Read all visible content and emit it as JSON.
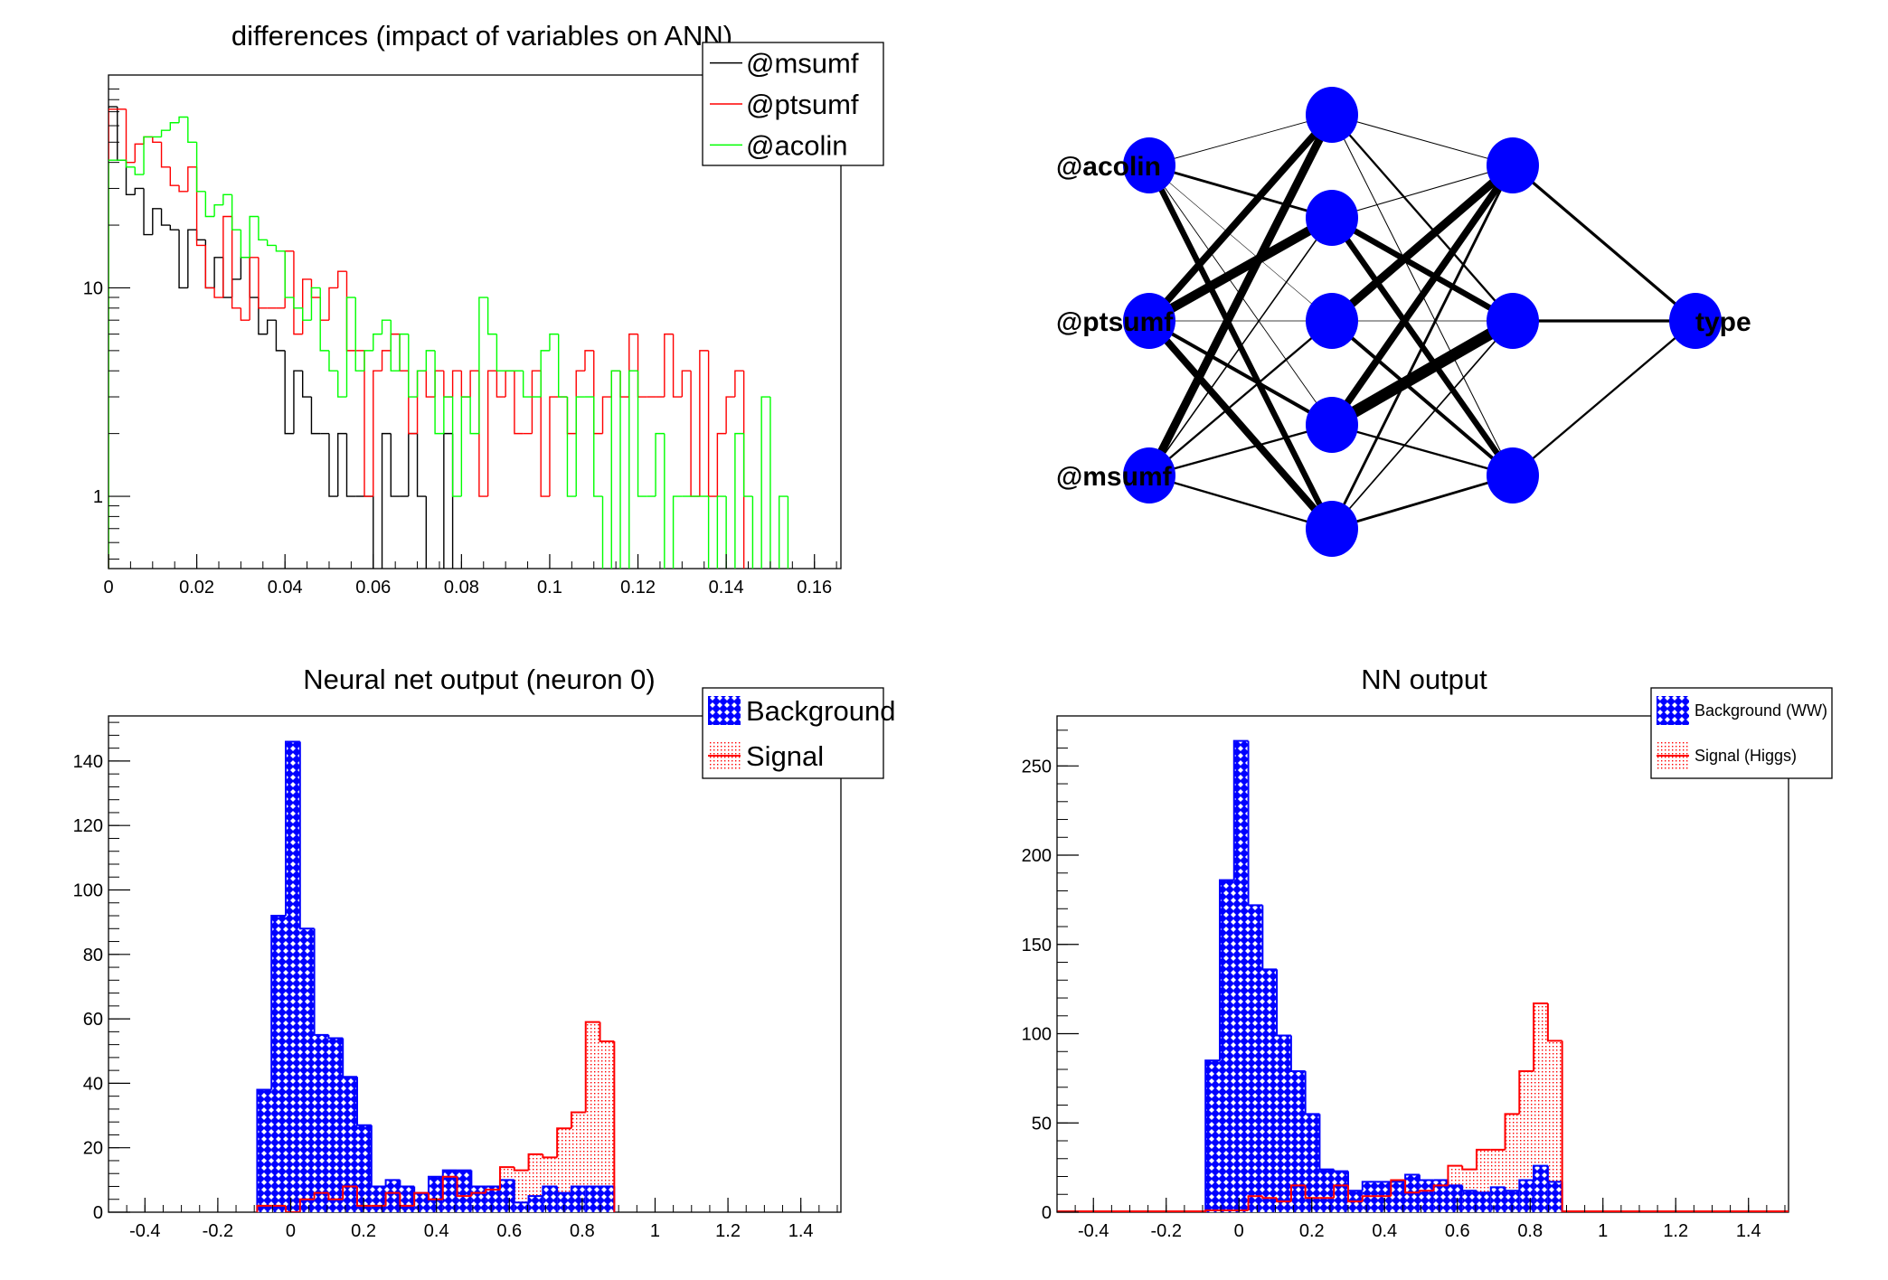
{
  "chart_data": [
    {
      "type": "histogram-step",
      "title": "differences (impact of variables on ANN)",
      "yscale": "log",
      "xlim": [
        0,
        0.166
      ],
      "ylim": [
        0.45,
        105
      ],
      "bin_low": 0,
      "bin_width": 0.002,
      "x_ticks": [
        "0",
        "0.02",
        "0.04",
        "0.06",
        "0.08",
        "0.1",
        "0.12",
        "0.14",
        "0.16"
      ],
      "y_ticks": [
        "1",
        "10"
      ],
      "legend_placement": "top-right",
      "legend": [
        {
          "label": "@msumf",
          "style": "line"
        },
        {
          "label": "@ptsumf",
          "style": "line"
        },
        {
          "label": "@acolin",
          "style": "line"
        }
      ],
      "series": [
        {
          "name": "@msumf",
          "color": "#000000",
          "values": [
            74,
            41,
            28,
            30,
            18,
            24,
            20,
            19,
            10,
            19,
            17,
            10,
            14,
            9,
            11,
            14,
            9,
            6,
            7,
            5,
            2,
            4,
            3,
            2,
            2,
            1,
            2,
            1,
            1,
            1,
            0,
            2,
            1,
            1,
            2,
            1,
            0,
            0,
            2
          ]
        },
        {
          "name": "@ptsumf",
          "color": "#ff0000",
          "values": [
            72,
            72,
            40,
            49,
            53,
            50,
            38,
            31,
            29,
            38,
            16,
            10,
            9,
            22,
            8,
            7,
            14,
            8,
            8,
            8,
            15,
            6,
            11,
            9,
            7,
            10,
            12,
            5,
            5,
            1,
            4,
            5,
            6,
            4,
            2,
            4,
            3,
            4,
            3,
            4,
            3,
            4,
            1,
            4,
            3,
            4,
            2,
            2,
            4,
            1,
            3,
            3,
            2,
            4,
            5,
            2,
            3,
            4,
            3,
            6,
            3,
            3,
            3,
            6,
            3,
            4,
            1,
            5,
            1,
            2,
            3,
            4
          ]
        },
        {
          "name": "@acolin",
          "color": "#00ff00",
          "values": [
            41,
            41,
            38,
            35,
            53,
            53,
            57,
            62,
            66,
            50,
            29,
            22,
            25,
            28,
            19,
            14,
            22,
            17,
            16,
            15,
            9,
            8,
            7,
            10,
            5,
            4,
            3,
            9,
            4,
            5,
            6,
            7,
            4,
            6,
            3,
            4,
            5,
            2,
            3,
            1,
            3,
            2,
            9,
            6,
            4,
            4,
            4,
            3,
            3,
            5,
            6,
            3,
            1,
            3,
            3,
            1,
            0,
            4,
            0,
            4,
            1,
            1,
            2,
            0,
            1,
            1,
            1,
            1,
            0,
            1,
            0,
            2,
            1,
            0,
            3,
            0,
            1
          ]
        }
      ]
    },
    {
      "type": "histogram",
      "title": "Neural net output (neuron 0)",
      "xlim": [
        -0.5,
        1.51
      ],
      "ylim": [
        0,
        154
      ],
      "bin_low": -0.092,
      "bin_width": 0.0392,
      "x_ticks": [
        "-0.4",
        "-0.2",
        "0",
        "0.2",
        "0.4",
        "0.6",
        "0.8",
        "1",
        "1.2",
        "1.4"
      ],
      "y_ticks": [
        "0",
        "20",
        "40",
        "60",
        "80",
        "100",
        "120",
        "140"
      ],
      "legend_placement": "top-right",
      "legend": [
        {
          "label": "Background",
          "style": "crosshatch"
        },
        {
          "label": "Signal",
          "style": "dotted"
        }
      ],
      "series": [
        {
          "name": "Background",
          "color": "#0000ff",
          "fill": "crosshatch",
          "values": [
            38,
            92,
            146,
            88,
            55,
            54,
            42,
            27,
            8,
            10,
            8,
            6,
            11,
            13,
            13,
            8,
            8,
            10,
            3,
            5,
            8,
            6,
            8,
            8,
            8
          ]
        },
        {
          "name": "Signal",
          "color": "#ff0000",
          "fill": "dotted",
          "values": [
            2,
            2,
            0,
            4,
            6,
            4,
            8,
            2,
            2,
            6,
            2,
            6,
            4,
            11,
            5,
            6,
            7,
            14,
            13,
            18,
            17,
            26,
            31,
            59,
            53
          ]
        }
      ]
    },
    {
      "type": "histogram",
      "title": "NN output",
      "xlim": [
        -0.5,
        1.51
      ],
      "ylim": [
        0,
        278
      ],
      "bin_low": -0.092,
      "bin_width": 0.0392,
      "x_ticks": [
        "-0.4",
        "-0.2",
        "0",
        "0.2",
        "0.4",
        "0.6",
        "0.8",
        "1",
        "1.2",
        "1.4"
      ],
      "y_ticks": [
        "0",
        "50",
        "100",
        "150",
        "200",
        "250"
      ],
      "legend_placement": "top-right",
      "legend": [
        {
          "label": "Background (WW)",
          "style": "crosshatch"
        },
        {
          "label": "Signal (Higgs)",
          "style": "dotted"
        }
      ],
      "series": [
        {
          "name": "Background (WW)",
          "color": "#0000ff",
          "fill": "crosshatch",
          "values": [
            85,
            186,
            264,
            172,
            136,
            99,
            79,
            55,
            24,
            23,
            12,
            17,
            17,
            17,
            21,
            18,
            18,
            15,
            12,
            11,
            14,
            12,
            18,
            26,
            17
          ]
        },
        {
          "name": "Signal (Higgs)",
          "color": "#ff0000",
          "fill": "dotted",
          "values": [
            1,
            1,
            1,
            9,
            8,
            6,
            15,
            8,
            8,
            15,
            6,
            9,
            9,
            18,
            11,
            12,
            15,
            26,
            24,
            35,
            35,
            55,
            79,
            117,
            96
          ]
        }
      ]
    }
  ],
  "network": {
    "node_color": "#0000ff",
    "input_labels": [
      "@acolin",
      "@ptsumf",
      "@msumf"
    ],
    "output_label": "type",
    "layer_sizes": [
      3,
      5,
      3,
      1
    ],
    "weight_magnitudes": [
      [
        [
          0.7,
          2.2,
          0.4,
          0.7,
          5
        ],
        [
          6,
          8,
          0.5,
          3,
          6
        ],
        [
          7,
          1.2,
          1.8,
          1.8,
          1.8
        ]
      ],
      [
        [
          0.8,
          1.8,
          0.8
        ],
        [
          0.8,
          5,
          5
        ],
        [
          7,
          0.6,
          3
        ],
        [
          6,
          10,
          1.8
        ],
        [
          2.2,
          1.3,
          2.2
        ]
      ],
      [
        [
          2.5
        ],
        [
          2.5
        ],
        [
          1.8
        ]
      ]
    ]
  }
}
